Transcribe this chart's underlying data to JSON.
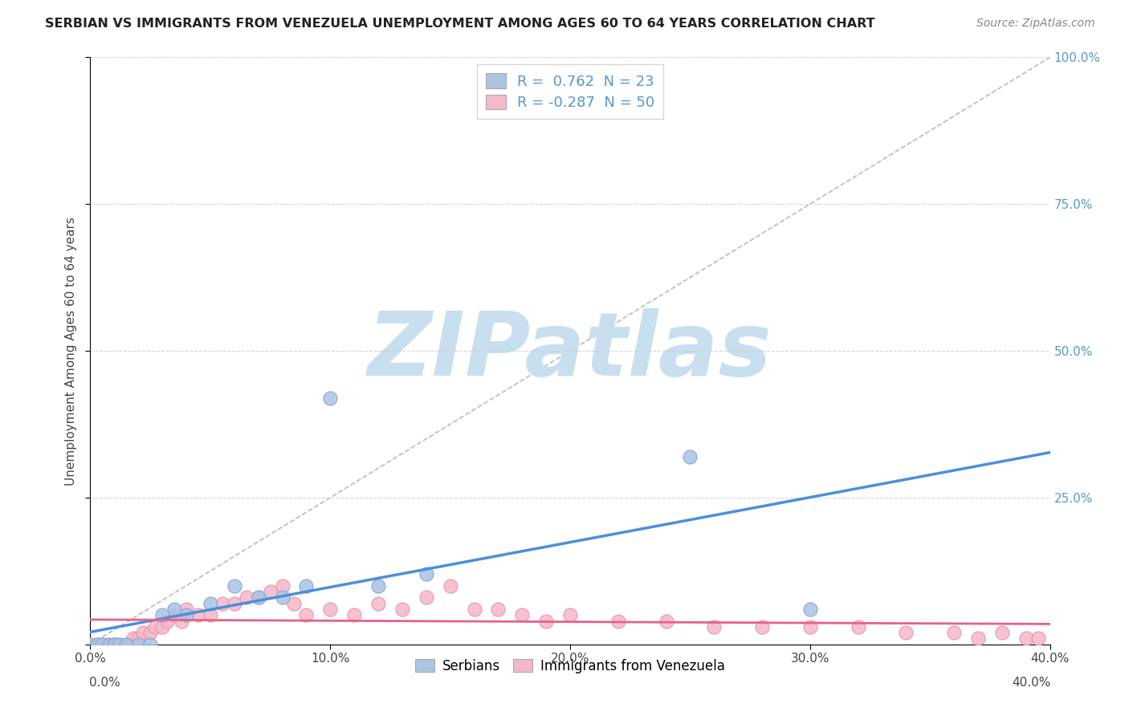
{
  "title": "SERBIAN VS IMMIGRANTS FROM VENEZUELA UNEMPLOYMENT AMONG AGES 60 TO 64 YEARS CORRELATION CHART",
  "source": "Source: ZipAtlas.com",
  "ylabel": "Unemployment Among Ages 60 to 64 years",
  "xlim": [
    0.0,
    0.4
  ],
  "ylim": [
    0.0,
    1.0
  ],
  "xticks": [
    0.0,
    0.1,
    0.2,
    0.3,
    0.4
  ],
  "yticks": [
    0.0,
    0.25,
    0.5,
    0.75,
    1.0
  ],
  "series1_label": "Serbians",
  "series1_R": "0.762",
  "series1_N": "23",
  "series1_color": "#aac4e2",
  "series1_edge_color": "#88aadd",
  "series1_line_color": "#4a90d9",
  "series2_label": "Immigrants from Venezuela",
  "series2_R": "-0.287",
  "series2_N": "50",
  "series2_color": "#f5b8c8",
  "series2_edge_color": "#e898b0",
  "series2_line_color": "#e8608a",
  "background_color": "#ffffff",
  "grid_color": "#cccccc",
  "watermark": "ZIPatlas",
  "watermark_color": "#c8dff0",
  "ref_line_color": "#bbbbbb",
  "tick_color": "#5599cc",
  "series1_x": [
    0.0,
    0.003,
    0.005,
    0.008,
    0.01,
    0.01,
    0.012,
    0.015,
    0.02,
    0.025,
    0.03,
    0.035,
    0.04,
    0.05,
    0.06,
    0.07,
    0.08,
    0.09,
    0.1,
    0.12,
    0.14,
    0.25,
    0.3
  ],
  "series1_y": [
    0.0,
    0.0,
    0.0,
    0.0,
    0.0,
    0.0,
    0.0,
    0.0,
    0.0,
    0.0,
    0.05,
    0.06,
    0.05,
    0.07,
    0.1,
    0.08,
    0.08,
    0.1,
    0.42,
    0.1,
    0.12,
    0.32,
    0.06
  ],
  "series2_x": [
    0.0,
    0.003,
    0.005,
    0.007,
    0.01,
    0.012,
    0.015,
    0.018,
    0.02,
    0.022,
    0.025,
    0.027,
    0.03,
    0.032,
    0.035,
    0.038,
    0.04,
    0.045,
    0.05,
    0.055,
    0.06,
    0.065,
    0.07,
    0.075,
    0.08,
    0.085,
    0.09,
    0.1,
    0.11,
    0.12,
    0.13,
    0.14,
    0.15,
    0.16,
    0.17,
    0.18,
    0.19,
    0.2,
    0.22,
    0.24,
    0.26,
    0.28,
    0.3,
    0.32,
    0.34,
    0.36,
    0.37,
    0.38,
    0.39,
    0.395
  ],
  "series2_y": [
    0.0,
    0.0,
    0.0,
    0.0,
    0.0,
    0.0,
    0.0,
    0.01,
    0.01,
    0.02,
    0.02,
    0.03,
    0.03,
    0.04,
    0.05,
    0.04,
    0.06,
    0.05,
    0.05,
    0.07,
    0.07,
    0.08,
    0.08,
    0.09,
    0.1,
    0.07,
    0.05,
    0.06,
    0.05,
    0.07,
    0.06,
    0.08,
    0.1,
    0.06,
    0.06,
    0.05,
    0.04,
    0.05,
    0.04,
    0.04,
    0.03,
    0.03,
    0.03,
    0.03,
    0.02,
    0.02,
    0.01,
    0.02,
    0.01,
    0.01
  ]
}
